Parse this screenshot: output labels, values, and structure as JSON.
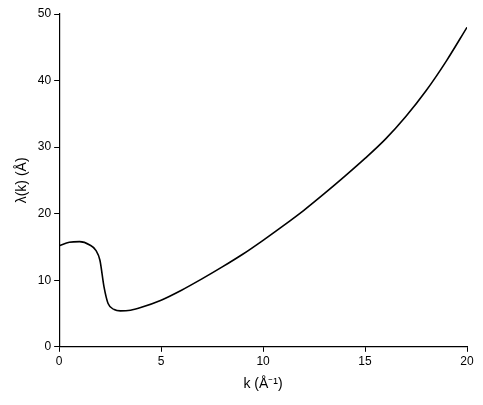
{
  "chart_data": {
    "type": "line",
    "x_label": "k (Å⁻¹)",
    "y_label": "λ(k) (Å)",
    "x": [
      0,
      0.5,
      1,
      1.5,
      1.8,
      2.0,
      2.2,
      2.4,
      2.7,
      3,
      3.5,
      4,
      5,
      6,
      7,
      8,
      9,
      10,
      11,
      12,
      13,
      14,
      15,
      16,
      17,
      18,
      19,
      20
    ],
    "values": [
      15.2,
      15.7,
      15.8,
      15.3,
      14.5,
      13,
      9,
      6.5,
      5.6,
      5.4,
      5.5,
      5.9,
      7,
      8.5,
      10.2,
      12,
      13.9,
      16,
      18.2,
      20.5,
      23,
      25.6,
      28.3,
      31.2,
      34.6,
      38.5,
      43,
      48
    ],
    "color": "#000000",
    "xlim": [
      0,
      20
    ],
    "xticks": [
      0,
      5,
      10,
      15,
      20
    ],
    "ylim": [
      0,
      50
    ],
    "yticks": [
      0,
      10,
      20,
      30,
      40,
      50
    ],
    "grid": false
  }
}
